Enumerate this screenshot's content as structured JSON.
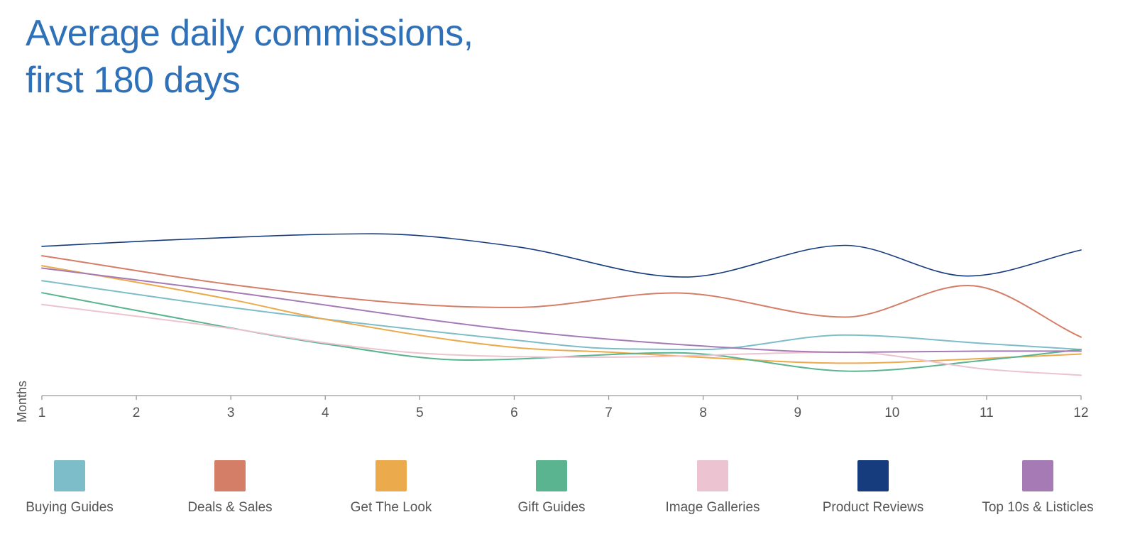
{
  "chart_data": {
    "type": "line",
    "title_lines": [
      "Average daily commissions,",
      "first 180 days"
    ],
    "xlabel": "Months",
    "ylabel": "",
    "x": [
      1,
      2,
      3,
      4,
      5,
      6,
      7,
      8,
      9,
      10,
      11,
      12
    ],
    "ylim": [
      0,
      100
    ],
    "grid": false,
    "legend_position": "bottom",
    "series": [
      {
        "name": "Buying Guides",
        "color": "#7dbdc9",
        "x": [
          1,
          3,
          6,
          7,
          8,
          9.5,
          11,
          12
        ],
        "values": [
          47.6,
          36.5,
          23.0,
          19.5,
          19.1,
          25.1,
          21.5,
          19.1
        ]
      },
      {
        "name": "Deals & Sales",
        "color": "#d47e68",
        "x": [
          1,
          3,
          5,
          6,
          7.7,
          9.5,
          10.8,
          12
        ],
        "values": [
          57.9,
          46.0,
          37.7,
          36.5,
          42.5,
          32.5,
          45.6,
          24.2
        ]
      },
      {
        "name": "Get The Look",
        "color": "#ebaa4c",
        "x": [
          1,
          3,
          4,
          6,
          7,
          8,
          9.5,
          11,
          12
        ],
        "values": [
          53.8,
          39.8,
          31.6,
          19.9,
          18.0,
          15.8,
          13.4,
          15.4,
          17.2
        ]
      },
      {
        "name": "Gift Guides",
        "color": "#59b48f",
        "x": [
          1,
          3,
          4,
          5.5,
          7.7,
          9.6,
          11,
          12
        ],
        "values": [
          42.6,
          28.0,
          21.4,
          14.7,
          17.7,
          10.1,
          14.7,
          19.1
        ]
      },
      {
        "name": "Image Galleries",
        "color": "#ecc3d0",
        "x": [
          1,
          3,
          4,
          5,
          7,
          9.5,
          11,
          12
        ],
        "values": [
          37.7,
          27.8,
          21.8,
          17.6,
          15.9,
          18.0,
          10.9,
          8.4
        ]
      },
      {
        "name": "Product Reviews",
        "color": "#163c7e",
        "x": [
          1,
          2.5,
          4.5,
          6,
          7.8,
          9.5,
          10.8,
          12
        ],
        "values": [
          61.8,
          64.7,
          67.0,
          61.8,
          49.1,
          62.2,
          49.5,
          60.3
        ]
      },
      {
        "name": "Top 10s & Listicles",
        "color": "#a67ab5",
        "x": [
          1,
          3,
          6,
          8,
          9.5,
          11,
          12
        ],
        "values": [
          52.8,
          42.9,
          27.1,
          20.5,
          17.9,
          18.4,
          18.4
        ]
      }
    ]
  }
}
